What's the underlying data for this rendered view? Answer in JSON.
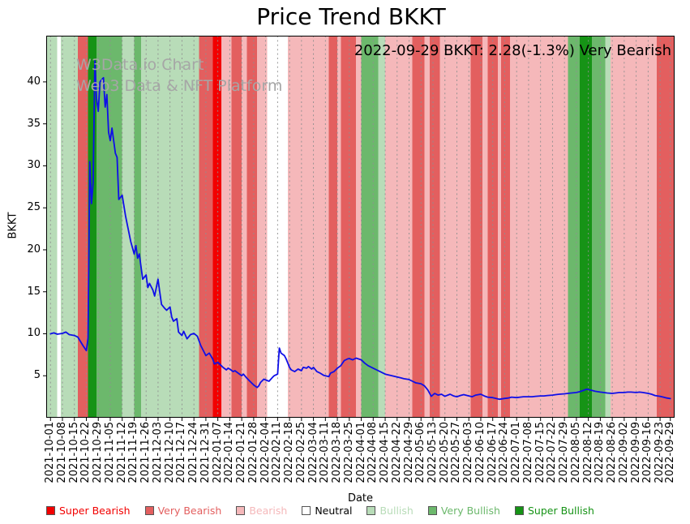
{
  "title": "Price Trend BKKT",
  "annotation": "2022-09-29 BKKT: 2.28(-1.3%) Very Bearish",
  "watermark": {
    "line1": "W3Data.io Chart",
    "line2": "Web3 Data & NFT Platform"
  },
  "chart_data": {
    "type": "line",
    "title": "Price Trend BKKT",
    "xlabel": "Date",
    "ylabel": "BKKT",
    "x_unit": "days since 2021-10-01",
    "xlim": [
      -2.5,
      365.5
    ],
    "ylim": [
      0,
      45.5
    ],
    "yticks": [
      5,
      10,
      15,
      20,
      25,
      30,
      35,
      40
    ],
    "grid": "vertical-dashed",
    "legend_position": "bottom",
    "x_ticks": [
      [
        0,
        "2021-10-01"
      ],
      [
        7,
        "2021-10-08"
      ],
      [
        14,
        "2021-10-15"
      ],
      [
        21,
        "2021-10-22"
      ],
      [
        28,
        "2021-10-29"
      ],
      [
        35,
        "2021-11-05"
      ],
      [
        42,
        "2021-11-12"
      ],
      [
        49,
        "2021-11-19"
      ],
      [
        56,
        "2021-11-26"
      ],
      [
        63,
        "2021-12-03"
      ],
      [
        70,
        "2021-12-10"
      ],
      [
        77,
        "2021-12-17"
      ],
      [
        84,
        "2021-12-24"
      ],
      [
        91,
        "2021-12-31"
      ],
      [
        98,
        "2022-01-07"
      ],
      [
        105,
        "2022-01-14"
      ],
      [
        112,
        "2022-01-21"
      ],
      [
        119,
        "2022-01-28"
      ],
      [
        126,
        "2022-02-04"
      ],
      [
        133,
        "2022-02-11"
      ],
      [
        140,
        "2022-02-18"
      ],
      [
        147,
        "2022-02-25"
      ],
      [
        154,
        "2022-03-04"
      ],
      [
        161,
        "2022-03-11"
      ],
      [
        168,
        "2022-03-18"
      ],
      [
        175,
        "2022-03-25"
      ],
      [
        182,
        "2022-04-01"
      ],
      [
        189,
        "2022-04-08"
      ],
      [
        196,
        "2022-04-15"
      ],
      [
        203,
        "2022-04-22"
      ],
      [
        210,
        "2022-04-29"
      ],
      [
        217,
        "2022-05-06"
      ],
      [
        224,
        "2022-05-13"
      ],
      [
        231,
        "2022-05-20"
      ],
      [
        238,
        "2022-05-27"
      ],
      [
        245,
        "2022-06-03"
      ],
      [
        252,
        "2022-06-10"
      ],
      [
        259,
        "2022-06-17"
      ],
      [
        266,
        "2022-06-24"
      ],
      [
        273,
        "2022-07-01"
      ],
      [
        280,
        "2022-07-08"
      ],
      [
        287,
        "2022-07-15"
      ],
      [
        294,
        "2022-07-22"
      ],
      [
        301,
        "2022-07-29"
      ],
      [
        308,
        "2022-08-05"
      ],
      [
        315,
        "2022-08-12"
      ],
      [
        322,
        "2022-08-19"
      ],
      [
        329,
        "2022-08-26"
      ],
      [
        336,
        "2022-09-02"
      ],
      [
        343,
        "2022-09-09"
      ],
      [
        350,
        "2022-09-16"
      ],
      [
        357,
        "2022-09-23"
      ],
      [
        363,
        "2022-09-29"
      ]
    ],
    "sentiment_colors": {
      "super_bearish": "#f20000",
      "very_bearish": "#e35f5f",
      "bearish": "#f5b8ba",
      "neutral": "#ffffff",
      "bullish": "#b8dcb8",
      "very_bullish": "#6cb86c",
      "super_bullish": "#169316"
    },
    "bands": [
      {
        "from": -3,
        "to": 4,
        "s": "bullish"
      },
      {
        "from": 4,
        "to": 6,
        "s": "neutral"
      },
      {
        "from": 6,
        "to": 16,
        "s": "bullish"
      },
      {
        "from": 16,
        "to": 22,
        "s": "very_bearish"
      },
      {
        "from": 22,
        "to": 27,
        "s": "super_bullish"
      },
      {
        "from": 27,
        "to": 42,
        "s": "very_bullish"
      },
      {
        "from": 42,
        "to": 49,
        "s": "bullish"
      },
      {
        "from": 49,
        "to": 53,
        "s": "very_bullish"
      },
      {
        "from": 53,
        "to": 87,
        "s": "bullish"
      },
      {
        "from": 87,
        "to": 95,
        "s": "very_bearish"
      },
      {
        "from": 95,
        "to": 100,
        "s": "super_bearish"
      },
      {
        "from": 100,
        "to": 106,
        "s": "bearish"
      },
      {
        "from": 106,
        "to": 112,
        "s": "very_bearish"
      },
      {
        "from": 112,
        "to": 115,
        "s": "bearish"
      },
      {
        "from": 115,
        "to": 121,
        "s": "very_bearish"
      },
      {
        "from": 121,
        "to": 127,
        "s": "bearish"
      },
      {
        "from": 127,
        "to": 139,
        "s": "neutral"
      },
      {
        "from": 139,
        "to": 163,
        "s": "bearish"
      },
      {
        "from": 163,
        "to": 168,
        "s": "very_bearish"
      },
      {
        "from": 168,
        "to": 170,
        "s": "bearish"
      },
      {
        "from": 170,
        "to": 179,
        "s": "very_bearish"
      },
      {
        "from": 179,
        "to": 182,
        "s": "bearish"
      },
      {
        "from": 182,
        "to": 192,
        "s": "very_bullish"
      },
      {
        "from": 192,
        "to": 196,
        "s": "bullish"
      },
      {
        "from": 196,
        "to": 212,
        "s": "bearish"
      },
      {
        "from": 212,
        "to": 219,
        "s": "very_bearish"
      },
      {
        "from": 219,
        "to": 222,
        "s": "bearish"
      },
      {
        "from": 222,
        "to": 228,
        "s": "very_bearish"
      },
      {
        "from": 228,
        "to": 246,
        "s": "bearish"
      },
      {
        "from": 246,
        "to": 253,
        "s": "very_bearish"
      },
      {
        "from": 253,
        "to": 256,
        "s": "bearish"
      },
      {
        "from": 256,
        "to": 262,
        "s": "very_bearish"
      },
      {
        "from": 262,
        "to": 264,
        "s": "bearish"
      },
      {
        "from": 264,
        "to": 269,
        "s": "very_bearish"
      },
      {
        "from": 269,
        "to": 303,
        "s": "bearish"
      },
      {
        "from": 303,
        "to": 310,
        "s": "very_bullish"
      },
      {
        "from": 310,
        "to": 317,
        "s": "super_bullish"
      },
      {
        "from": 317,
        "to": 325,
        "s": "very_bullish"
      },
      {
        "from": 325,
        "to": 328,
        "s": "bullish"
      },
      {
        "from": 328,
        "to": 355,
        "s": "bearish"
      },
      {
        "from": 355,
        "to": 368,
        "s": "very_bearish"
      }
    ],
    "series": [
      {
        "name": "BKKT",
        "color": "#0f0fe8",
        "points": [
          [
            0,
            10.0
          ],
          [
            2,
            10.1
          ],
          [
            4,
            9.95
          ],
          [
            7,
            10.05
          ],
          [
            9,
            10.2
          ],
          [
            11,
            9.9
          ],
          [
            14,
            9.8
          ],
          [
            16,
            9.6
          ],
          [
            19,
            8.6
          ],
          [
            21,
            8.0
          ],
          [
            22,
            9.5
          ],
          [
            23,
            30.5
          ],
          [
            24,
            25.5
          ],
          [
            25,
            28.0
          ],
          [
            26,
            42.5
          ],
          [
            27,
            38.0
          ],
          [
            28,
            36.5
          ],
          [
            29,
            40.0
          ],
          [
            31,
            40.5
          ],
          [
            32,
            37.0
          ],
          [
            33,
            38.5
          ],
          [
            34,
            34.0
          ],
          [
            35,
            33.0
          ],
          [
            36,
            34.5
          ],
          [
            38,
            31.5
          ],
          [
            39,
            31.0
          ],
          [
            40,
            26.0
          ],
          [
            42,
            26.5
          ],
          [
            44,
            24.0
          ],
          [
            45,
            23.0
          ],
          [
            47,
            21.0
          ],
          [
            49,
            19.5
          ],
          [
            50,
            20.5
          ],
          [
            51,
            19.0
          ],
          [
            52,
            19.5
          ],
          [
            53,
            18.0
          ],
          [
            54,
            16.5
          ],
          [
            56,
            17.0
          ],
          [
            57,
            15.5
          ],
          [
            58,
            16.0
          ],
          [
            60,
            15.2
          ],
          [
            61,
            14.5
          ],
          [
            63,
            16.5
          ],
          [
            64,
            15.0
          ],
          [
            65,
            13.5
          ],
          [
            67,
            13.0
          ],
          [
            68,
            12.8
          ],
          [
            70,
            13.2
          ],
          [
            71,
            12.0
          ],
          [
            72,
            11.5
          ],
          [
            74,
            11.8
          ],
          [
            75,
            10.2
          ],
          [
            77,
            9.8
          ],
          [
            78,
            10.3
          ],
          [
            80,
            9.4
          ],
          [
            82,
            9.9
          ],
          [
            84,
            10.05
          ],
          [
            86,
            9.7
          ],
          [
            88,
            8.6
          ],
          [
            89,
            8.2
          ],
          [
            91,
            7.4
          ],
          [
            93,
            7.7
          ],
          [
            95,
            7.0
          ],
          [
            96,
            6.4
          ],
          [
            98,
            6.6
          ],
          [
            100,
            6.2
          ],
          [
            101,
            6.0
          ],
          [
            103,
            5.7
          ],
          [
            104,
            5.9
          ],
          [
            105,
            5.8
          ],
          [
            107,
            5.5
          ],
          [
            108,
            5.6
          ],
          [
            110,
            5.3
          ],
          [
            112,
            5.0
          ],
          [
            113,
            5.2
          ],
          [
            115,
            4.7
          ],
          [
            117,
            4.3
          ],
          [
            119,
            3.9
          ],
          [
            121,
            3.6
          ],
          [
            122,
            3.8
          ],
          [
            123,
            4.2
          ],
          [
            125,
            4.6
          ],
          [
            126,
            4.5
          ],
          [
            128,
            4.35
          ],
          [
            130,
            4.8
          ],
          [
            131,
            5.0
          ],
          [
            133,
            5.2
          ],
          [
            134,
            8.3
          ],
          [
            135,
            7.7
          ],
          [
            137,
            7.4
          ],
          [
            138,
            7.0
          ],
          [
            140,
            6.0
          ],
          [
            141,
            5.7
          ],
          [
            143,
            5.5
          ],
          [
            145,
            5.8
          ],
          [
            147,
            5.6
          ],
          [
            148,
            6.0
          ],
          [
            150,
            5.9
          ],
          [
            151,
            6.1
          ],
          [
            153,
            5.8
          ],
          [
            154,
            6.0
          ],
          [
            156,
            5.5
          ],
          [
            158,
            5.3
          ],
          [
            160,
            5.05
          ],
          [
            161,
            5.0
          ],
          [
            163,
            4.9
          ],
          [
            164,
            5.3
          ],
          [
            166,
            5.5
          ],
          [
            168,
            5.9
          ],
          [
            170,
            6.2
          ],
          [
            172,
            6.8
          ],
          [
            174,
            7.0
          ],
          [
            175,
            7.05
          ],
          [
            177,
            6.9
          ],
          [
            179,
            7.1
          ],
          [
            182,
            6.9
          ],
          [
            184,
            6.5
          ],
          [
            186,
            6.2
          ],
          [
            189,
            5.9
          ],
          [
            191,
            5.7
          ],
          [
            193,
            5.5
          ],
          [
            196,
            5.2
          ],
          [
            198,
            5.1
          ],
          [
            200,
            5.0
          ],
          [
            203,
            4.85
          ],
          [
            205,
            4.75
          ],
          [
            207,
            4.65
          ],
          [
            210,
            4.55
          ],
          [
            212,
            4.35
          ],
          [
            214,
            4.15
          ],
          [
            217,
            4.05
          ],
          [
            219,
            3.8
          ],
          [
            221,
            3.3
          ],
          [
            223,
            2.55
          ],
          [
            225,
            2.9
          ],
          [
            227,
            2.7
          ],
          [
            229,
            2.8
          ],
          [
            231,
            2.55
          ],
          [
            234,
            2.8
          ],
          [
            236,
            2.6
          ],
          [
            238,
            2.5
          ],
          [
            240,
            2.65
          ],
          [
            242,
            2.75
          ],
          [
            245,
            2.6
          ],
          [
            247,
            2.5
          ],
          [
            249,
            2.7
          ],
          [
            252,
            2.8
          ],
          [
            254,
            2.6
          ],
          [
            256,
            2.45
          ],
          [
            259,
            2.4
          ],
          [
            261,
            2.3
          ],
          [
            263,
            2.2
          ],
          [
            266,
            2.3
          ],
          [
            268,
            2.35
          ],
          [
            270,
            2.45
          ],
          [
            273,
            2.4
          ],
          [
            275,
            2.45
          ],
          [
            277,
            2.5
          ],
          [
            280,
            2.5
          ],
          [
            282,
            2.5
          ],
          [
            284,
            2.55
          ],
          [
            287,
            2.6
          ],
          [
            289,
            2.6
          ],
          [
            291,
            2.65
          ],
          [
            294,
            2.7
          ],
          [
            296,
            2.75
          ],
          [
            298,
            2.8
          ],
          [
            301,
            2.85
          ],
          [
            303,
            2.9
          ],
          [
            305,
            2.95
          ],
          [
            308,
            3.0
          ],
          [
            310,
            3.1
          ],
          [
            312,
            3.25
          ],
          [
            314,
            3.4
          ],
          [
            316,
            3.3
          ],
          [
            319,
            3.15
          ],
          [
            322,
            3.05
          ],
          [
            324,
            3.0
          ],
          [
            326,
            2.95
          ],
          [
            329,
            2.9
          ],
          [
            331,
            2.95
          ],
          [
            333,
            3.0
          ],
          [
            336,
            3.0
          ],
          [
            338,
            3.05
          ],
          [
            340,
            3.05
          ],
          [
            343,
            3.0
          ],
          [
            345,
            3.05
          ],
          [
            347,
            3.0
          ],
          [
            350,
            2.9
          ],
          [
            352,
            2.8
          ],
          [
            354,
            2.65
          ],
          [
            357,
            2.55
          ],
          [
            359,
            2.45
          ],
          [
            361,
            2.35
          ],
          [
            363,
            2.28
          ]
        ]
      }
    ],
    "legend": [
      {
        "key": "super_bearish",
        "label": "Super Bearish"
      },
      {
        "key": "very_bearish",
        "label": "Very Bearish"
      },
      {
        "key": "bearish",
        "label": "Bearish"
      },
      {
        "key": "neutral",
        "label": "Neutral",
        "text_color": "#000000"
      },
      {
        "key": "bullish",
        "label": "Bullish"
      },
      {
        "key": "very_bullish",
        "label": "Very Bullish"
      },
      {
        "key": "super_bullish",
        "label": "Super Bullish"
      }
    ]
  }
}
